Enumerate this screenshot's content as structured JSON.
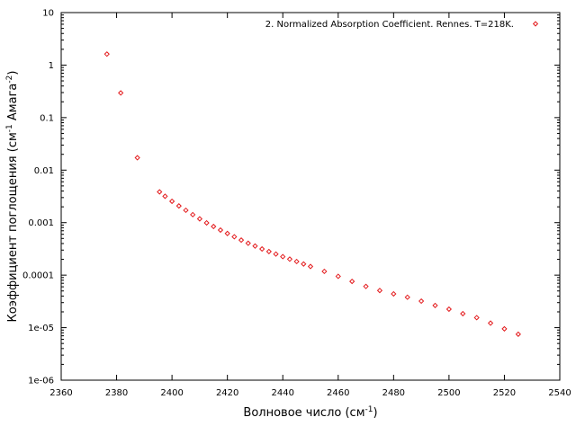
{
  "chart_data": {
    "type": "scatter",
    "xlabel": {
      "text": "Волновое число (см",
      "sup": "-1",
      "tail": ")"
    },
    "ylabel": {
      "text": "Коэффициент поглощения (см",
      "sup1": "-1",
      "mid": " Амага",
      "sup2": "-2",
      "tail": ")"
    },
    "xlim": [
      2360,
      2540
    ],
    "ylim": [
      1e-06,
      10
    ],
    "yscale": "log",
    "grid": false,
    "legend_position": "top-right",
    "x_ticks": [
      "2360",
      "2380",
      "2400",
      "2420",
      "2440",
      "2460",
      "2480",
      "2500",
      "2520",
      "2540"
    ],
    "x_tick_values": [
      2360,
      2380,
      2400,
      2420,
      2440,
      2460,
      2480,
      2500,
      2520,
      2540
    ],
    "y_ticks": [
      "1e-06",
      "1e-05",
      "0.0001",
      "0.001",
      "0.01",
      "0.1",
      "1",
      "10"
    ],
    "y_tick_values": [
      1e-06,
      1e-05,
      0.0001,
      0.001,
      0.01,
      0.1,
      1,
      10
    ],
    "series": [
      {
        "name": "2. Normalized Absorption Coefficient. Rennes. T=218K.",
        "color": "#e31a1c",
        "marker": "diamond",
        "points": [
          [
            2376.5,
            1.62
          ],
          [
            2381.5,
            0.295
          ],
          [
            2387.5,
            0.0172
          ],
          [
            2395.5,
            0.00385
          ],
          [
            2397.5,
            0.00318
          ],
          [
            2400.0,
            0.00255
          ],
          [
            2402.5,
            0.00208
          ],
          [
            2405.0,
            0.00172
          ],
          [
            2407.5,
            0.00142
          ],
          [
            2410.0,
            0.00118
          ],
          [
            2412.5,
            0.00099
          ],
          [
            2415.0,
            0.000845
          ],
          [
            2417.5,
            0.000722
          ],
          [
            2420.0,
            0.000622
          ],
          [
            2422.5,
            0.000538
          ],
          [
            2425.0,
            0.000465
          ],
          [
            2427.5,
            0.000405
          ],
          [
            2430.0,
            0.000358
          ],
          [
            2432.5,
            0.000315
          ],
          [
            2435.0,
            0.000282
          ],
          [
            2437.5,
            0.000252
          ],
          [
            2440.0,
            0.000225
          ],
          [
            2442.5,
            0.000202
          ],
          [
            2445.0,
            0.000182
          ],
          [
            2447.5,
            0.000163
          ],
          [
            2450.0,
            0.000146
          ],
          [
            2455.0,
            0.000118
          ],
          [
            2460.0,
            9.5e-05
          ],
          [
            2465.0,
            7.6e-05
          ],
          [
            2470.0,
            6.1e-05
          ],
          [
            2475.0,
            5.1e-05
          ],
          [
            2480.0,
            4.4e-05
          ],
          [
            2485.0,
            3.8e-05
          ],
          [
            2490.0,
            3.2e-05
          ],
          [
            2495.0,
            2.65e-05
          ],
          [
            2500.0,
            2.25e-05
          ],
          [
            2505.0,
            1.85e-05
          ],
          [
            2510.0,
            1.55e-05
          ],
          [
            2515.0,
            1.22e-05
          ],
          [
            2520.0,
            9.5e-06
          ],
          [
            2525.0,
            7.5e-06
          ]
        ]
      }
    ]
  }
}
